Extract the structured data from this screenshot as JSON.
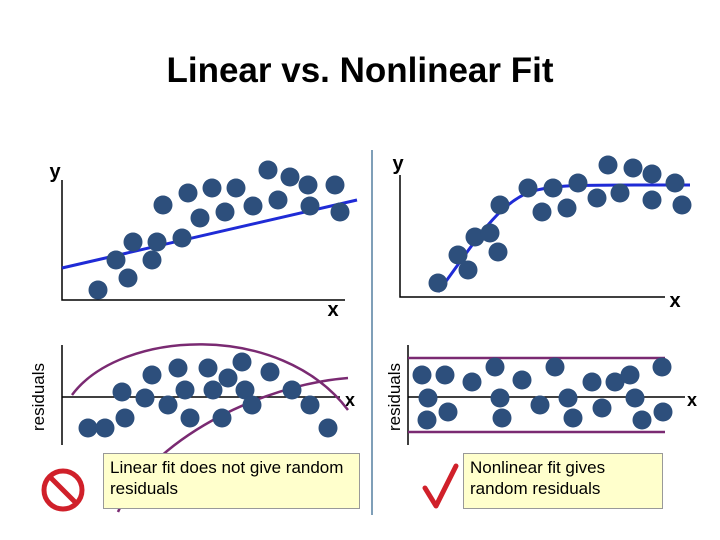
{
  "header": {
    "title": "Linear vs. Nonlinear Fit"
  },
  "panels": [
    {
      "y_label": "y",
      "x_label": "x",
      "residual_label": "residuals",
      "residual_x_label": "x",
      "caption": "Linear fit does not give random residuals"
    },
    {
      "y_label": "y",
      "x_label": "x",
      "residual_label": "residuals",
      "residual_x_label": "x",
      "caption": "Nonlinear fit gives random residuals"
    }
  ]
}
